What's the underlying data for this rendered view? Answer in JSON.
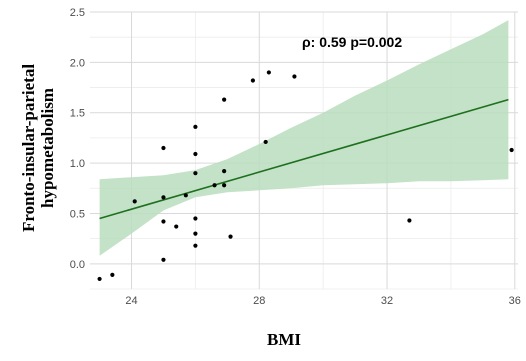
{
  "chart_data": {
    "type": "scatter",
    "title": "",
    "xlabel": "BMI",
    "ylabel": "Fronto-insular-parietal hypometabolism",
    "ylabel_lines": [
      "Fronto-insular-parietal",
      "hypometabolism"
    ],
    "annotation": "ρ: 0.59 p=0.002",
    "xlim": [
      22.7,
      36.1
    ],
    "ylim": [
      -0.25,
      2.5
    ],
    "x_ticks": [
      24,
      28,
      32,
      36
    ],
    "x_tick_labels": [
      "24",
      "28",
      "32",
      "36"
    ],
    "x_minor_ticks": [
      22,
      26,
      30,
      34
    ],
    "y_ticks": [
      0.0,
      0.5,
      1.0,
      1.5,
      2.0,
      2.5
    ],
    "y_tick_labels": [
      "0.0",
      "0.5",
      "1.0",
      "1.5",
      "2.0",
      "2.5"
    ],
    "grid": true,
    "points": [
      {
        "x": 23.0,
        "y": -0.15
      },
      {
        "x": 23.4,
        "y": -0.11
      },
      {
        "x": 24.1,
        "y": 0.62
      },
      {
        "x": 25.0,
        "y": 1.15
      },
      {
        "x": 25.0,
        "y": 0.66
      },
      {
        "x": 25.0,
        "y": 0.42
      },
      {
        "x": 25.0,
        "y": 0.04
      },
      {
        "x": 25.4,
        "y": 0.37
      },
      {
        "x": 25.7,
        "y": 0.68
      },
      {
        "x": 26.0,
        "y": 1.36
      },
      {
        "x": 26.0,
        "y": 1.09
      },
      {
        "x": 26.0,
        "y": 0.9
      },
      {
        "x": 26.0,
        "y": 0.45
      },
      {
        "x": 26.0,
        "y": 0.3
      },
      {
        "x": 26.0,
        "y": 0.18
      },
      {
        "x": 26.6,
        "y": 0.78
      },
      {
        "x": 26.9,
        "y": 0.92
      },
      {
        "x": 26.9,
        "y": 0.78
      },
      {
        "x": 26.9,
        "y": 1.63
      },
      {
        "x": 27.1,
        "y": 0.27
      },
      {
        "x": 27.8,
        "y": 1.82
      },
      {
        "x": 28.2,
        "y": 1.21
      },
      {
        "x": 28.3,
        "y": 1.9
      },
      {
        "x": 29.1,
        "y": 1.86
      },
      {
        "x": 32.7,
        "y": 0.43
      },
      {
        "x": 35.9,
        "y": 1.13
      }
    ],
    "fit_line": {
      "x": [
        23.0,
        35.8
      ],
      "y": [
        0.45,
        1.63
      ]
    },
    "confidence_band": {
      "x": [
        23.0,
        24.0,
        25.0,
        26.0,
        27.0,
        28.0,
        29.0,
        30.0,
        31.0,
        32.0,
        33.0,
        34.0,
        35.0,
        35.8
      ],
      "upper": [
        0.84,
        0.86,
        0.88,
        0.93,
        1.04,
        1.19,
        1.35,
        1.5,
        1.67,
        1.82,
        1.98,
        2.13,
        2.28,
        2.42
      ],
      "lower": [
        0.08,
        0.3,
        0.53,
        0.66,
        0.71,
        0.73,
        0.75,
        0.78,
        0.79,
        0.8,
        0.82,
        0.82,
        0.83,
        0.84
      ]
    },
    "colors": {
      "line": "#1f6f1f",
      "band": "#b9ddbd",
      "points": "#000000",
      "grid_major": "#d9d9d9",
      "grid_minor": "#ececec",
      "tick_text": "#4d4d4d"
    }
  }
}
